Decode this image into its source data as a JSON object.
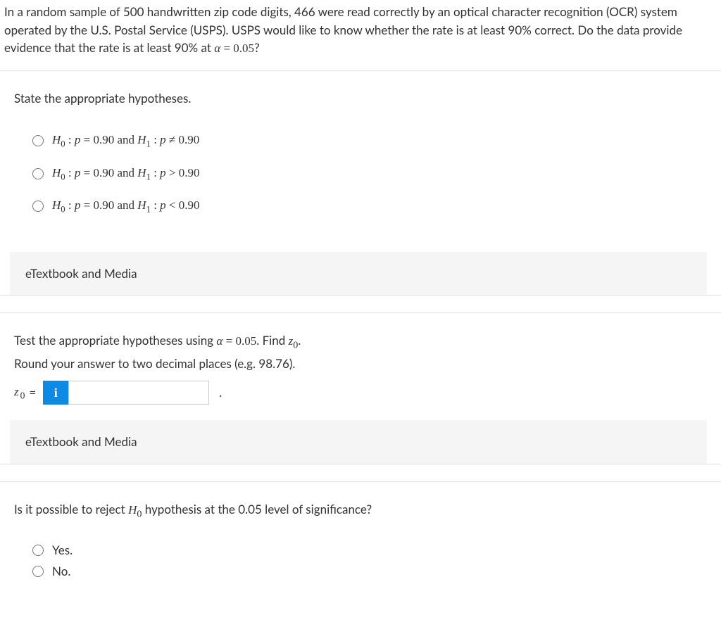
{
  "intro": {
    "text_html": "In a random sample of 500 handwritten zip code digits, 466 were read correctly by an optical character recognition (OCR) system operated by the U.S. Postal Service (USPS). USPS would like to know whether the rate is at least 90% correct. Do the data provide evidence that the rate is at least 90% at <span class='math'><span class='it'>α</span> = 0.05</span>?"
  },
  "part1": {
    "prompt": "State the appropriate hypotheses.",
    "options": [
      "<span class='italic'>H</span><sub>0</sub> : <span class='italic'>p</span> = 0.90 and <span class='italic'>H</span><sub>1</sub> : <span class='italic'>p</span> ≠ 0.90",
      "<span class='italic'>H</span><sub>0</sub> : <span class='italic'>p</span> = 0.90 and <span class='italic'>H</span><sub>1</sub> : <span class='italic'>p</span> > 0.90",
      "<span class='italic'>H</span><sub>0</sub> : <span class='italic'>p</span> = 0.90 and <span class='italic'>H</span><sub>1</sub> : <span class='italic'>p</span> < 0.90"
    ]
  },
  "etextbook_label": "eTextbook and Media",
  "part2": {
    "prompt_html": "Test the appropriate hypotheses using <span class='math'><span class='it'>α</span> = 0.05</span>. Find <span class='math'><span class='it'>z</span><sub>0</sub></span>.",
    "sub_prompt": "Round your answer to two decimal places (e.g. 98.76).",
    "var_label_html": "<span class='z-label'>z</span><span class='z-sub'>0</span>",
    "eq": "=",
    "info_icon": "i",
    "input_value": "",
    "trailing": "."
  },
  "part3": {
    "prompt_html": "Is it possible to reject <span class='math'><span class='it'>H</span><sub>0</sub></span> hypothesis at the 0.05 level of significance?",
    "options": [
      "Yes.",
      "No."
    ]
  },
  "colors": {
    "info_btn_bg": "#0d8ae6",
    "bar_bg": "#f5f5f5",
    "border": "#e0e0e0"
  }
}
